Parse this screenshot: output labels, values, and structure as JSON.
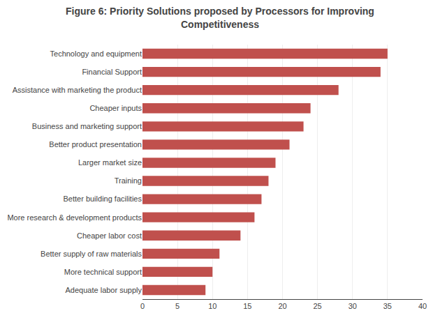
{
  "chart_data": {
    "type": "bar",
    "orientation": "horizontal",
    "title": "Figure 6: Priority Solutions proposed by Processors for Improving\nCompetitiveness",
    "categories": [
      "Adequate labor supply",
      "More technical support",
      "Better supply of raw materials",
      "Cheaper labor cost",
      "More research & development products",
      "Better building facilities",
      "Training",
      "Larger market size",
      "Better product presentation",
      "Business and marketing support",
      "Cheaper inputs",
      "Assistance with marketing the product",
      "Financial Support",
      "Technology and equipment"
    ],
    "values": [
      9,
      10,
      11,
      14,
      16,
      17,
      18,
      19,
      21,
      23,
      24,
      28,
      34,
      35
    ],
    "color": "#c0504d",
    "xlim": [
      0,
      40
    ],
    "xticks": [
      0,
      5,
      10,
      15,
      20,
      25,
      30,
      35,
      40
    ],
    "grid": true
  }
}
